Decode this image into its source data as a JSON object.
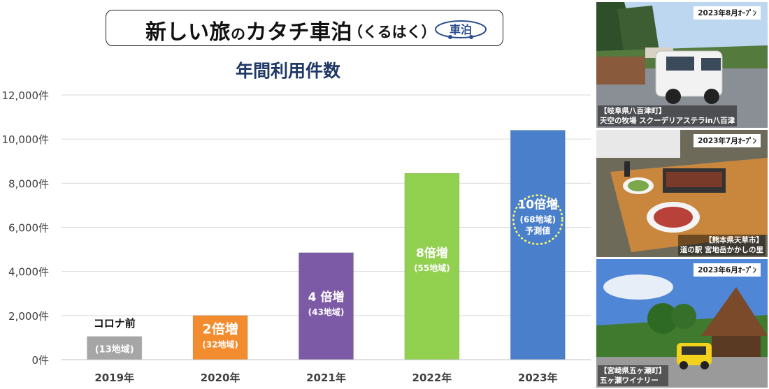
{
  "banner": {
    "title_main": "新しい旅",
    "title_no": "の",
    "title_rest": "カタチ車泊",
    "reading": "（くるはく）",
    "logo_text": "車泊"
  },
  "chart_data": {
    "type": "bar",
    "title": "年間利用件数",
    "categories": [
      "2019年",
      "2020年",
      "2021年",
      "2022年",
      "2023年"
    ],
    "values": [
      1050,
      2000,
      4850,
      8450,
      10400
    ],
    "colors": [
      "#a6a6a6",
      "#f28c2e",
      "#7d5aa6",
      "#92d050",
      "#4a7fcb"
    ],
    "ylim": [
      0,
      12000
    ],
    "yticks": [
      "0件",
      "2,000件",
      "4,000件",
      "6,000件",
      "8,000件",
      "10,000件",
      "12,000件"
    ],
    "grid": true,
    "annotations": [
      {
        "above": "コロナ前",
        "main": "",
        "sub": "(13地域)",
        "extra": ""
      },
      {
        "above": "",
        "main": "2倍増",
        "sub": "(32地域)",
        "extra": ""
      },
      {
        "above": "",
        "main": "4 倍増",
        "sub": "(43地域)",
        "extra": ""
      },
      {
        "above": "",
        "main": "8倍増",
        "sub": "(55地域)",
        "extra": ""
      },
      {
        "above": "",
        "main": "10倍増",
        "sub": "(68地域)",
        "extra": "予測値"
      }
    ]
  },
  "photos": [
    {
      "badge": "2023年8月ｵｰﾌﾟﾝ",
      "caption_line1": "【岐阜県八百津町】",
      "caption_line2": "天空の牧場 スクーデリアステラin八百津",
      "scene": "rv-camp"
    },
    {
      "badge": "2023年7月ｵｰﾌﾟﾝ",
      "caption_line1": "【熊本県天草市】",
      "caption_line2": "道の駅 宮地岳かかしの里",
      "scene": "bbq-table"
    },
    {
      "badge": "2023年6月ｵｰﾌﾟﾝ",
      "caption_line1": "【宮崎県五ヶ瀬町】",
      "caption_line2": "五ヶ瀬ワイナリー",
      "scene": "winery"
    }
  ]
}
